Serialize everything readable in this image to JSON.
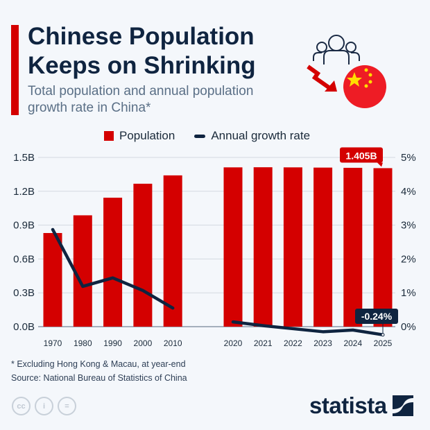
{
  "header": {
    "title_line1": "Chinese Population",
    "title_line2": "Keeps on Shrinking",
    "subtitle_line1": "Total population and annual population",
    "subtitle_line2": "growth rate in China*",
    "icon": "population-decline-china-flag-icon"
  },
  "colors": {
    "bar": "#d40000",
    "line": "#0f2440",
    "accent": "#d40000"
  },
  "chart_data": {
    "type": "bar+line",
    "categories": [
      "1970",
      "1980",
      "1990",
      "2000",
      "2010",
      "2020",
      "2021",
      "2022",
      "2023",
      "2024",
      "2025"
    ],
    "series": [
      {
        "name": "Population",
        "type": "bar",
        "axis": "left",
        "unit": "B",
        "values": [
          0.83,
          0.987,
          1.143,
          1.267,
          1.341,
          1.412,
          1.413,
          1.412,
          1.41,
          1.408,
          1.405
        ]
      },
      {
        "name": "Annual growth rate",
        "type": "line",
        "axis": "right",
        "unit": "%",
        "values": [
          2.87,
          1.19,
          1.44,
          1.07,
          0.55,
          0.14,
          0.03,
          -0.06,
          -0.15,
          -0.1,
          -0.24
        ]
      }
    ],
    "left_axis": {
      "ticks": [
        "0.0B",
        "0.3B",
        "0.6B",
        "0.9B",
        "1.2B",
        "1.5B"
      ],
      "range": [
        0,
        1.5
      ]
    },
    "right_axis": {
      "ticks": [
        "0%",
        "1%",
        "2%",
        "3%",
        "4%",
        "5%"
      ],
      "range": [
        0,
        5
      ]
    },
    "annotations": {
      "population_last": "1.405B",
      "growth_last": "-0.24%"
    },
    "grid": true,
    "legend_placement": "top"
  },
  "footer": {
    "note": "* Excluding Hong Kong & Macau, at year-end",
    "source": "Source: National Bureau of Statistics of China",
    "license_icons": [
      "cc",
      "by",
      "nd"
    ],
    "license_labels": [
      "cc",
      "i",
      "="
    ],
    "brand": "statista"
  }
}
